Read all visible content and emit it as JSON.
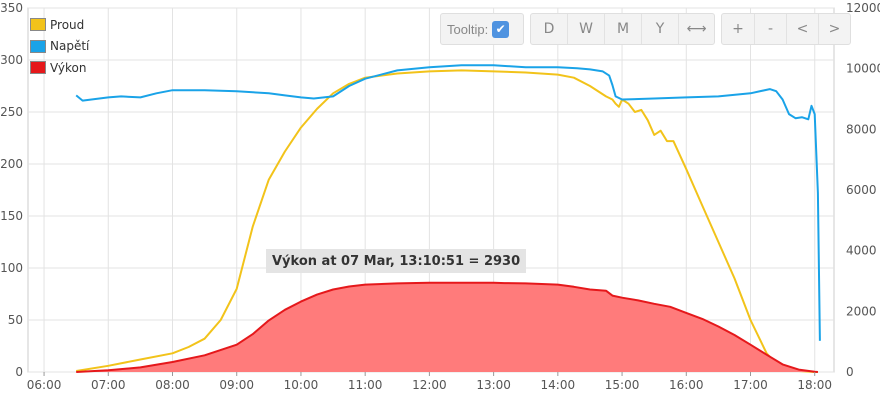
{
  "legend": [
    {
      "name": "Proud",
      "color": "#f2c31a"
    },
    {
      "name": "Napětí",
      "color": "#1aa3e8"
    },
    {
      "name": "Výkon",
      "color": "#e5181b"
    }
  ],
  "toolbar": {
    "tooltip_label": "Tooltip:",
    "range_buttons": [
      "D",
      "W",
      "M",
      "Y"
    ],
    "expand_icon": "⟷",
    "zoom_in": "+",
    "zoom_out": "-",
    "prev": "<",
    "next": ">"
  },
  "tooltip": {
    "text": "Výkon at 07 Mar, 13:10:51 = 2930"
  },
  "chart_data": {
    "type": "line",
    "x_ticks": [
      "06:00",
      "07:00",
      "08:00",
      "09:00",
      "10:00",
      "11:00",
      "12:00",
      "13:00",
      "14:00",
      "15:00",
      "16:00",
      "17:00",
      "18:00"
    ],
    "y_left_ticks": [
      "0",
      "50",
      "100",
      "150",
      "200",
      "250",
      "300",
      "350"
    ],
    "y_right_ticks": [
      "0",
      "2000",
      "4000",
      "6000",
      "8000",
      "10000",
      "12000"
    ],
    "ylim_left": [
      0,
      350
    ],
    "ylim_right": [
      0,
      12000
    ],
    "xlim_hours": [
      5.75,
      18.3
    ],
    "grid": true,
    "series": [
      {
        "name": "Proud",
        "axis": "left",
        "color": "#f2c31a",
        "x": [
          6.5,
          7.0,
          7.5,
          8.0,
          8.25,
          8.5,
          8.75,
          9.0,
          9.25,
          9.5,
          9.75,
          10.0,
          10.25,
          10.5,
          10.75,
          11.0,
          11.5,
          12.0,
          12.5,
          13.0,
          13.5,
          14.0,
          14.25,
          14.5,
          14.75,
          14.85,
          14.9,
          14.95,
          15.0,
          15.1,
          15.2,
          15.3,
          15.4,
          15.5,
          15.6,
          15.7,
          15.8,
          16.0,
          16.25,
          16.5,
          16.75,
          17.0,
          17.25,
          17.4,
          17.5,
          17.6,
          17.75,
          18.0,
          18.05
        ],
        "values": [
          1,
          6,
          12,
          18,
          24,
          32,
          50,
          80,
          140,
          185,
          212,
          235,
          253,
          268,
          277,
          283,
          287,
          289,
          290,
          289,
          288,
          286,
          283,
          275,
          265,
          262,
          258,
          255,
          262,
          258,
          250,
          252,
          242,
          228,
          232,
          222,
          222,
          195,
          160,
          125,
          90,
          50,
          18,
          8,
          4,
          2,
          1,
          0,
          0
        ]
      },
      {
        "name": "Napětí",
        "axis": "left",
        "color": "#1aa3e8",
        "x": [
          6.5,
          6.6,
          7.0,
          7.2,
          7.5,
          7.75,
          8.0,
          8.5,
          9.0,
          9.5,
          9.75,
          10.0,
          10.2,
          10.5,
          10.75,
          11.0,
          11.5,
          12.0,
          12.5,
          13.0,
          13.5,
          14.0,
          14.3,
          14.5,
          14.7,
          14.8,
          14.85,
          14.9,
          15.0,
          15.5,
          16.0,
          16.5,
          17.0,
          17.3,
          17.4,
          17.5,
          17.6,
          17.7,
          17.8,
          17.9,
          17.95,
          18.0,
          18.05,
          18.08
        ],
        "values": [
          266,
          261,
          264,
          265,
          264,
          268,
          271,
          271,
          270,
          268,
          266,
          264,
          263,
          265,
          275,
          282,
          290,
          293,
          295,
          295,
          293,
          293,
          292,
          291,
          289,
          285,
          276,
          265,
          262,
          263,
          264,
          265,
          268,
          272,
          270,
          262,
          248,
          244,
          245,
          243,
          256,
          248,
          172,
          30
        ]
      },
      {
        "name": "Výkon",
        "axis": "right",
        "color": "#e5181b",
        "fill": "#ff7b7b",
        "x": [
          6.5,
          7.0,
          7.5,
          8.0,
          8.5,
          9.0,
          9.25,
          9.5,
          9.75,
          10.0,
          10.25,
          10.5,
          10.75,
          11.0,
          11.5,
          12.0,
          12.5,
          13.0,
          13.17,
          13.5,
          14.0,
          14.25,
          14.5,
          14.75,
          14.85,
          15.0,
          15.25,
          15.5,
          15.75,
          16.0,
          16.25,
          16.5,
          16.75,
          17.0,
          17.25,
          17.5,
          17.75,
          18.0,
          18.05
        ],
        "values": [
          0,
          60,
          150,
          330,
          550,
          900,
          1250,
          1700,
          2050,
          2320,
          2550,
          2720,
          2820,
          2880,
          2920,
          2940,
          2945,
          2940,
          2930,
          2920,
          2880,
          2810,
          2720,
          2680,
          2520,
          2450,
          2360,
          2250,
          2150,
          1950,
          1750,
          1500,
          1220,
          900,
          570,
          250,
          80,
          10,
          0
        ]
      }
    ]
  }
}
